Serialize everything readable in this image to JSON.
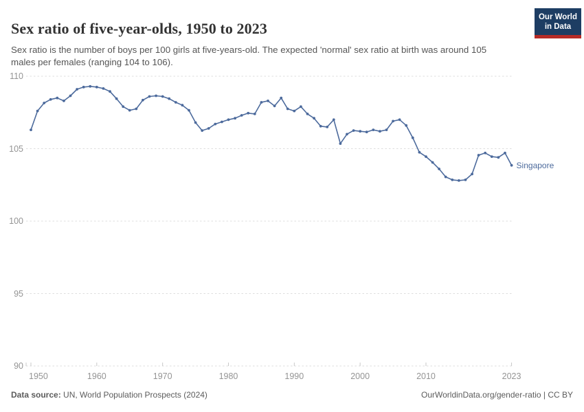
{
  "header": {
    "title": "Sex ratio of five-year-olds, 1950 to 2023",
    "subtitle": "Sex ratio is the number of boys per 100 girls at five-years-old. The expected 'normal' sex ratio at birth was around 105 males per females (ranging 104 to 106)."
  },
  "logo": {
    "line1": "Our World",
    "line2": "in Data",
    "bg_color": "#1d3d63",
    "bar_color": "#b62b27",
    "text_color": "#ffffff"
  },
  "chart_data": {
    "type": "line",
    "title": "Sex ratio of five-year-olds, 1950 to 2023",
    "xlabel": "",
    "ylabel": "",
    "xlim": [
      1950,
      2023
    ],
    "ylim": [
      90,
      110
    ],
    "grid": "horizontal-dashed",
    "legend_position": "end-of-line-label",
    "yticks": [
      90,
      95,
      100,
      105,
      110
    ],
    "xticks": [
      1950,
      1960,
      1970,
      1980,
      1990,
      2000,
      2010,
      2023
    ],
    "x": [
      1950,
      1951,
      1952,
      1953,
      1954,
      1955,
      1956,
      1957,
      1958,
      1959,
      1960,
      1961,
      1962,
      1963,
      1964,
      1965,
      1966,
      1967,
      1968,
      1969,
      1970,
      1971,
      1972,
      1973,
      1974,
      1975,
      1976,
      1977,
      1978,
      1979,
      1980,
      1981,
      1982,
      1983,
      1984,
      1985,
      1986,
      1987,
      1988,
      1989,
      1990,
      1991,
      1992,
      1993,
      1994,
      1995,
      1996,
      1997,
      1998,
      1999,
      2000,
      2001,
      2002,
      2003,
      2004,
      2005,
      2006,
      2007,
      2008,
      2009,
      2010,
      2011,
      2012,
      2013,
      2014,
      2015,
      2016,
      2017,
      2018,
      2019,
      2020,
      2021,
      2022,
      2023
    ],
    "series": [
      {
        "name": "Singapore",
        "color": "#4c6a9c",
        "values": [
          106.3,
          107.6,
          108.15,
          108.4,
          108.5,
          108.3,
          108.65,
          109.1,
          109.25,
          109.3,
          109.25,
          109.15,
          108.95,
          108.45,
          107.9,
          107.65,
          107.75,
          108.35,
          108.6,
          108.65,
          108.6,
          108.45,
          108.2,
          108.0,
          107.65,
          106.8,
          106.25,
          106.4,
          106.7,
          106.85,
          107.0,
          107.1,
          107.3,
          107.45,
          107.4,
          108.2,
          108.3,
          107.95,
          108.5,
          107.75,
          107.6,
          107.9,
          107.4,
          107.1,
          106.55,
          106.5,
          107.0,
          105.35,
          106.0,
          106.25,
          106.2,
          106.15,
          106.3,
          106.2,
          106.3,
          106.9,
          107.0,
          106.6,
          105.75,
          104.75,
          104.45,
          104.05,
          103.6,
          103.05,
          102.85,
          102.8,
          102.85,
          103.25,
          104.55,
          104.7,
          104.45,
          104.4,
          104.7,
          103.85
        ]
      }
    ],
    "grid_color": "#dddddd",
    "tick_label_color": "#949494"
  },
  "entity_label": "Singapore",
  "footer": {
    "source_label": "Data source:",
    "source_text": " UN, World Population Prospects (2024)",
    "right_text": "OurWorldinData.org/gender-ratio | CC BY"
  }
}
